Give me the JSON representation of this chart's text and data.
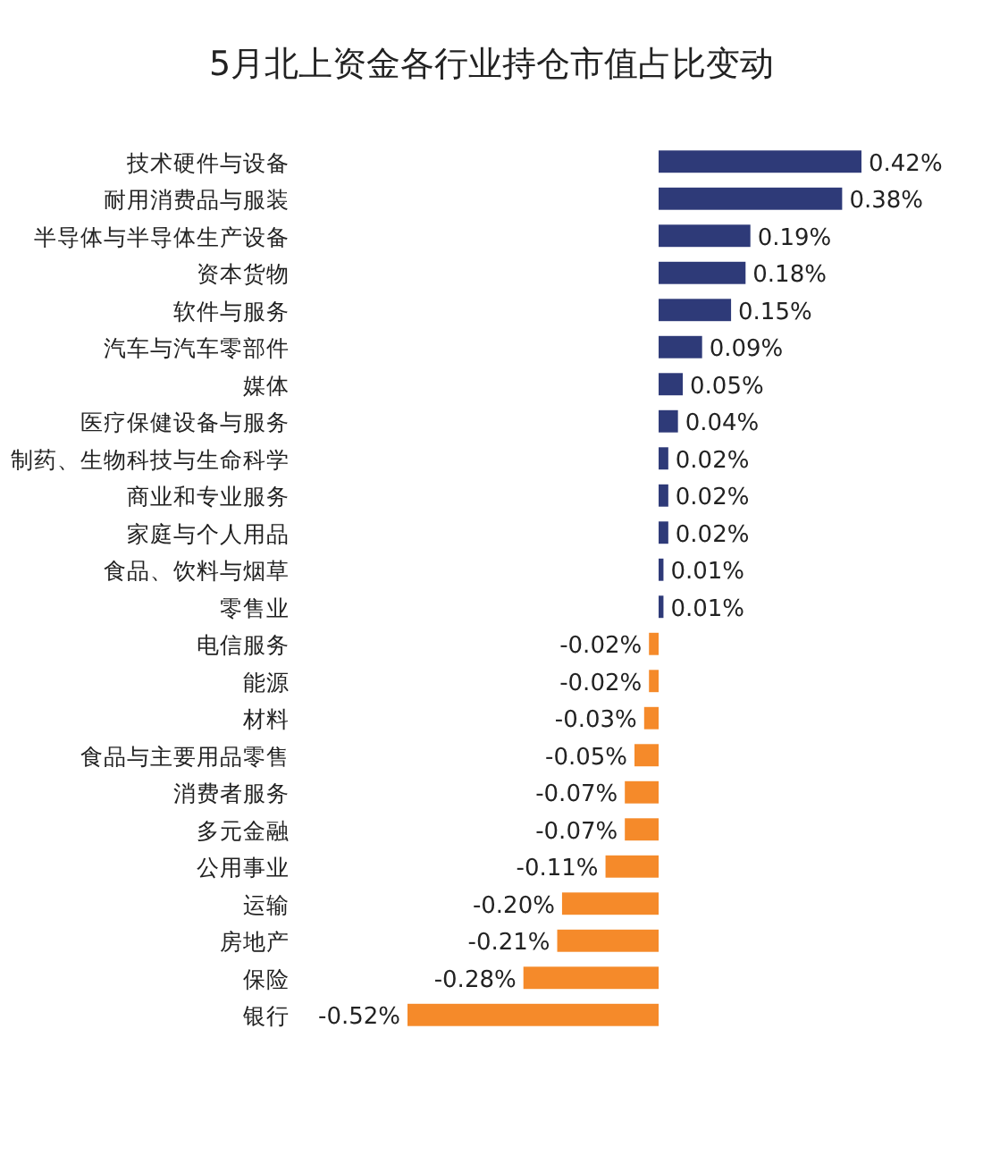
{
  "chart_data": {
    "type": "bar",
    "orientation": "horizontal",
    "title": "5月北上资金各行业持仓市值占比变动",
    "categories": [
      "技术硬件与设备",
      "耐用消费品与服装",
      "半导体与半导体生产设备",
      "资本货物",
      "软件与服务",
      "汽车与汽车零部件",
      "媒体",
      "医疗保健设备与服务",
      "制药、生物科技与生命科学",
      "商业和专业服务",
      "家庭与个人用品",
      "食品、饮料与烟草",
      "零售业",
      "电信服务",
      "能源",
      "材料",
      "食品与主要用品零售",
      "消费者服务",
      "多元金融",
      "公用事业",
      "运输",
      "房地产",
      "保险",
      "银行"
    ],
    "values": [
      0.42,
      0.38,
      0.19,
      0.18,
      0.15,
      0.09,
      0.05,
      0.04,
      0.02,
      0.02,
      0.02,
      0.01,
      0.01,
      -0.02,
      -0.02,
      -0.03,
      -0.05,
      -0.07,
      -0.07,
      -0.11,
      -0.2,
      -0.21,
      -0.28,
      -0.52
    ],
    "value_labels": [
      "0.42%",
      "0.38%",
      "0.19%",
      "0.18%",
      "0.15%",
      "0.09%",
      "0.05%",
      "0.04%",
      "0.02%",
      "0.02%",
      "0.02%",
      "0.01%",
      "0.01%",
      "-0.02%",
      "-0.02%",
      "-0.03%",
      "-0.05%",
      "-0.07%",
      "-0.07%",
      "-0.11%",
      "-0.20%",
      "-0.21%",
      "-0.28%",
      "-0.52%"
    ],
    "colors": [
      "#2e3a78",
      "#2e3a78",
      "#2e3a78",
      "#2e3a78",
      "#2e3a78",
      "#2e3a78",
      "#2e3a78",
      "#2e3a78",
      "#2e3a78",
      "#2e3a78",
      "#2e3a78",
      "#2e3a78",
      "#2e3a78",
      "#f58a2a",
      "#f58a2a",
      "#f58a2a",
      "#f58a2a",
      "#f58a2a",
      "#f58a2a",
      "#f58a2a",
      "#f58a2a",
      "#f58a2a",
      "#f58a2a",
      "#f58a2a"
    ]
  }
}
